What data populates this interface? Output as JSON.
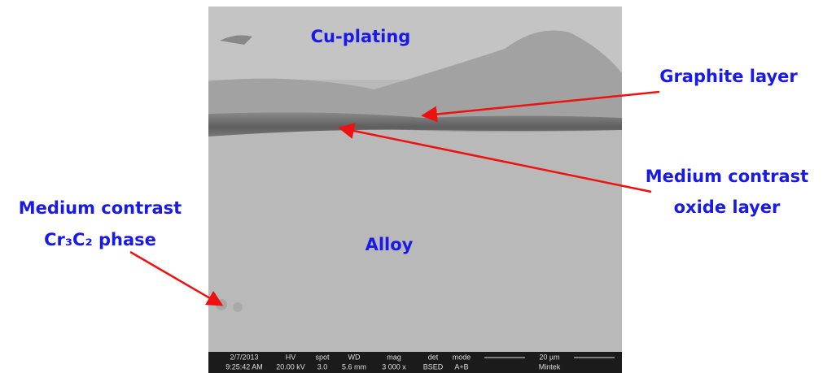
{
  "image": {
    "labels": {
      "cu_plating": "Cu-plating",
      "graphite": "Graphite layer",
      "oxide": [
        "Medium contrast",
        "oxide layer"
      ],
      "carbide": [
        "Medium contrast",
        "Cr₃C₂ phase"
      ],
      "alloy": "Alloy"
    },
    "info_bar": {
      "date": "2/7/2013",
      "time": "9:25:42 AM",
      "hv_label": "HV",
      "hv": "20.00 kV",
      "spot_label": "spot",
      "spot": "3.0",
      "wd_label": "WD",
      "wd": "5.6 mm",
      "mag_label": "mag",
      "mag": "3 000 x",
      "det_label": "det",
      "det": "BSED",
      "mode_label": "mode",
      "mode": "A+B",
      "scale": "20 µm",
      "lab": "Mintek"
    }
  }
}
